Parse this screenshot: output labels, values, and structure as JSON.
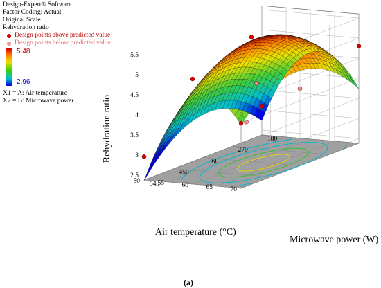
{
  "legend": {
    "software": "Design-Expert® Software",
    "coding": "Factor Coding: Actual",
    "scale": "Original Scale",
    "response": "Rehydration ratio",
    "points_above": "Design points above predicted value",
    "points_below": "Design points below predicted value",
    "max_value": "5.48",
    "min_value": "2.96",
    "x1": "X1 = A: Air temperature",
    "x2": "X2 = B: Microwave power"
  },
  "caption": "(a)",
  "colors": {
    "above": "#d40000",
    "below": "#f09090",
    "contour_cyan": "#00b8d0",
    "contour_yellow": "#e8d800",
    "contour_green": "#30c030"
  },
  "chart_data": {
    "type": "surface",
    "zlabel": "Rehydration ratio",
    "xlabel": "Air temperature (°C)",
    "ylabel": "Microwave power (W)",
    "x_ticks": [
      "50",
      "55",
      "60",
      "65",
      "70"
    ],
    "y_ticks": [
      "540",
      "450",
      "360",
      "270",
      "180"
    ],
    "z_ticks": [
      "2.5",
      "3",
      "3.5",
      "4",
      "4.5",
      "5",
      "5.5"
    ],
    "x_range": [
      50,
      70
    ],
    "y_range": [
      180,
      540
    ],
    "z_range": [
      2.5,
      5.5
    ],
    "response_range": [
      2.96,
      5.48
    ],
    "design_points": [
      {
        "x": 70,
        "y": 540,
        "z": 4.0,
        "position": "above"
      },
      {
        "x": 60,
        "y": 540,
        "z": 5.0,
        "position": "above"
      },
      {
        "x": 50,
        "y": 540,
        "z": 2.96,
        "position": "above"
      },
      {
        "x": 60,
        "y": 360,
        "z": 5.48,
        "position": "above"
      },
      {
        "x": 70,
        "y": 180,
        "z": 4.8,
        "position": "above"
      },
      {
        "x": 50,
        "y": 180,
        "z": 3.1,
        "position": "above"
      },
      {
        "x": 65,
        "y": 450,
        "z": 3.7,
        "position": "below"
      },
      {
        "x": 55,
        "y": 270,
        "z": 4.0,
        "position": "below"
      },
      {
        "x": 70,
        "y": 360,
        "z": 4.3,
        "position": "below"
      }
    ]
  }
}
